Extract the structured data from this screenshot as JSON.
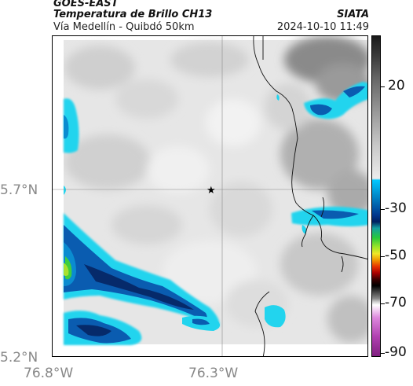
{
  "header": {
    "satellite": "GOES-EAST",
    "product": "Temperatura de Brillo CH13",
    "region": "Vía Medellín - Quibdó 50km",
    "organization": "SIATA",
    "timestamp": "2024-10-10 11:49"
  },
  "map": {
    "lat_labels": [
      "5.7°N",
      "5.2°N"
    ],
    "lon_labels": [
      "76.8°W",
      "76.3°W"
    ],
    "marker": "star-icon",
    "colors": {
      "cloud_cyan": "#22d4ee",
      "cloud_blue": "#0a5cb0",
      "cloud_navy": "#062a6a",
      "cloud_green": "#3ecf3e",
      "background_gray": "#e6e6e6"
    }
  },
  "colorbar": {
    "labels": [
      "20",
      "-30",
      "-50",
      "-70",
      "-90"
    ]
  }
}
